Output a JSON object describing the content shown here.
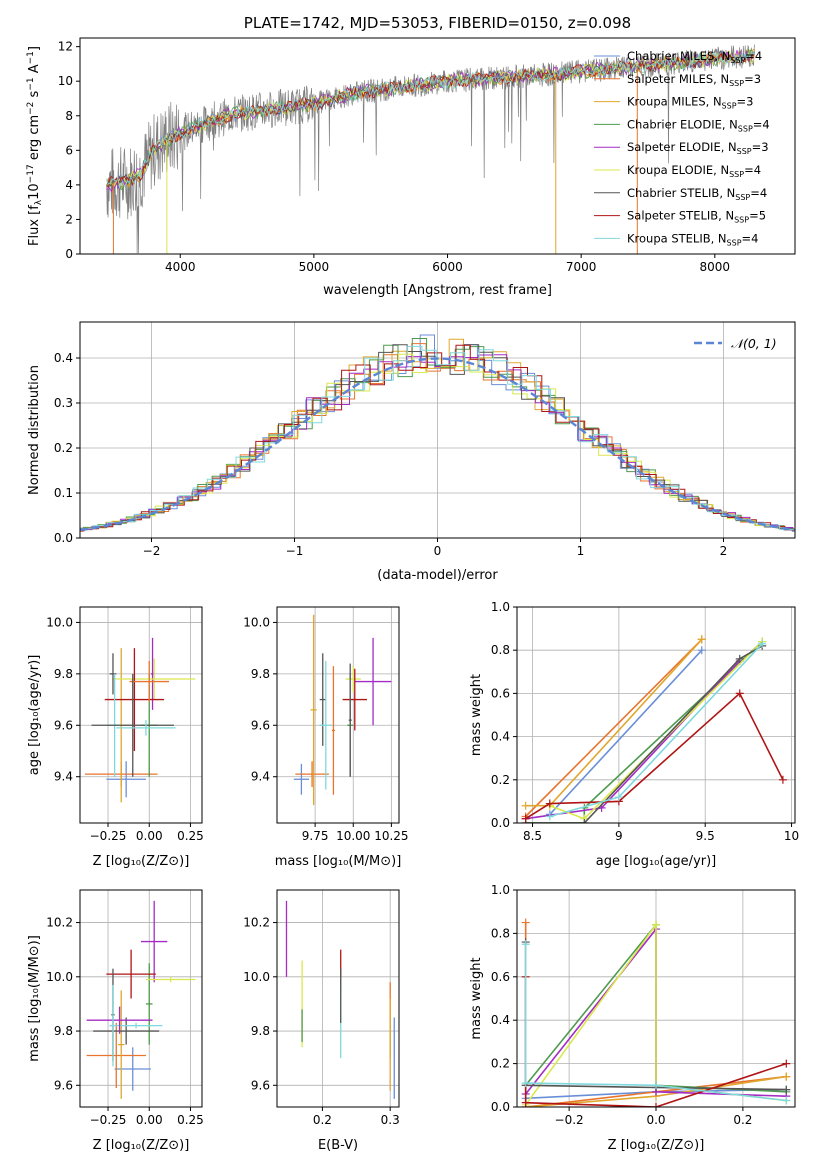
{
  "colors": {
    "chabrier_miles": "#6A8FD8",
    "salpeter_miles": "#E8742E",
    "kroupa_miles": "#E0A72E",
    "chabrier_elodie": "#4E9A4E",
    "salpeter_elodie": "#A52BC5",
    "kroupa_elodie": "#D9E84C",
    "chabrier_stelib": "#555555",
    "salpeter_stelib": "#B01515",
    "kroupa_stelib": "#7FD8DD",
    "gaussian": "#5B86D6",
    "spectrum_grey": "#7F7F7F"
  },
  "chart_data": [
    {
      "type": "line",
      "title": "PLATE=1742, MJD=53053, FIBERID=0150, z=0.098",
      "xlabel": "wavelength [Angstrom, rest frame]",
      "ylabel": "Flux [f_λ 10⁻¹⁷ erg cm⁻² s⁻¹ A⁻¹]",
      "xlim": [
        3250,
        8600
      ],
      "ylim": [
        0,
        12.5
      ],
      "xticks": [
        4000,
        5000,
        6000,
        7000,
        8000
      ],
      "yticks": [
        0,
        2,
        4,
        6,
        8,
        10,
        12
      ],
      "grid": false,
      "legend_position": "top-right",
      "legend": [
        {
          "label": "Chabrier MILES, N",
          "sub": "SSP",
          "suffix": "=4"
        },
        {
          "label": "Salpeter MILES, N",
          "sub": "SSP",
          "suffix": "=3"
        },
        {
          "label": "Kroupa MILES, N",
          "sub": "SSP",
          "suffix": "=3"
        },
        {
          "label": "Chabrier ELODIE, N",
          "sub": "SSP",
          "suffix": "=4"
        },
        {
          "label": "Salpeter ELODIE, N",
          "sub": "SSP",
          "suffix": "=3"
        },
        {
          "label": "Kroupa ELODIE, N",
          "sub": "SSP",
          "suffix": "=4"
        },
        {
          "label": "Chabrier STELIB, N",
          "sub": "SSP",
          "suffix": "=4"
        },
        {
          "label": "Salpeter STELIB, N",
          "sub": "SSP",
          "suffix": "=5"
        },
        {
          "label": "Kroupa STELIB, N",
          "sub": "SSP",
          "suffix": "=4"
        }
      ],
      "continuum": [
        [
          3450,
          4.0
        ],
        [
          3600,
          4.2
        ],
        [
          3700,
          4.6
        ],
        [
          3800,
          6.0
        ],
        [
          3900,
          6.6
        ],
        [
          4000,
          7.0
        ],
        [
          4200,
          7.6
        ],
        [
          4400,
          8.1
        ],
        [
          4700,
          8.4
        ],
        [
          5000,
          8.7
        ],
        [
          5300,
          9.3
        ],
        [
          5600,
          9.6
        ],
        [
          6000,
          10.0
        ],
        [
          6400,
          10.2
        ],
        [
          6800,
          10.4
        ],
        [
          7200,
          10.7
        ],
        [
          7600,
          11.0
        ],
        [
          8000,
          11.3
        ],
        [
          8300,
          11.5
        ]
      ]
    },
    {
      "type": "histogram",
      "xlabel": "(data-model)/error",
      "ylabel": "Normed distribution",
      "xlim": [
        -2.5,
        2.5
      ],
      "ylim": [
        0,
        0.48
      ],
      "xticks": [
        -2,
        -1,
        0,
        1,
        2
      ],
      "yticks": [
        0.0,
        0.1,
        0.2,
        0.3,
        0.4
      ],
      "grid": true,
      "legend_position": "top-right",
      "legend": [
        "𝒩(0, 1)"
      ],
      "gaussian": {
        "mean": 0,
        "sigma": 1
      }
    },
    {
      "type": "scatter",
      "xlabel": "Z [log₁₀(Z/Z⊙)]",
      "ylabel": "age  [log₁₀(age/yr)]",
      "xlim": [
        -0.42,
        0.32
      ],
      "ylim": [
        9.22,
        10.06
      ],
      "xticks": [
        -0.25,
        0.0,
        0.25
      ],
      "xtick_labels": [
        "−0.25",
        "0.00",
        "0.25"
      ],
      "yticks": [
        9.4,
        9.6,
        9.8,
        10.0
      ],
      "grid": true,
      "points": [
        {
          "series": "chabrier_miles",
          "x": -0.14,
          "xerr": 0.12,
          "y": 9.39,
          "yerr": 0.07
        },
        {
          "series": "salpeter_miles",
          "x": -0.17,
          "xerr": 0.22,
          "y": 9.41,
          "yerr": 0.05
        },
        {
          "series": "kroupa_miles",
          "x": -0.17,
          "xerr": 0.05,
          "y": 9.6,
          "yerr": 0.3
        },
        {
          "series": "chabrier_elodie",
          "x": 0.0,
          "xerr": 0.05,
          "y": 9.6,
          "yerr": 0.2
        },
        {
          "series": "salpeter_elodie",
          "x": 0.02,
          "xerr": 0.01,
          "y": 9.8,
          "yerr": 0.14
        },
        {
          "series": "kroupa_elodie",
          "x": 0.03,
          "xerr": 0.25,
          "y": 9.78,
          "yerr": 0.08
        },
        {
          "series": "chabrier_stelib",
          "x": -0.22,
          "xerr": 0.02,
          "y": 9.8,
          "yerr": 0.08
        },
        {
          "series": "salpeter_stelib",
          "x": -0.09,
          "xerr": 0.18,
          "y": 9.7,
          "yerr": 0.2
        },
        {
          "series": "kroupa_stelib",
          "x": -0.21,
          "xerr": 0.04,
          "y": 9.6,
          "yerr": 0.2
        },
        {
          "series": "salpeter_miles",
          "x": 0.0,
          "xerr": 0.12,
          "y": 9.77,
          "yerr": 0.08
        },
        {
          "series": "chabrier_stelib",
          "x": -0.1,
          "xerr": 0.25,
          "y": 9.6,
          "yerr": 0.2
        },
        {
          "series": "kroupa_stelib",
          "x": -0.02,
          "xerr": 0.18,
          "y": 9.59,
          "yerr": 0.03
        }
      ]
    },
    {
      "type": "scatter",
      "xlabel": "mass [log₁₀(M/M⊙)]",
      "ylabel": "",
      "xlim": [
        9.5,
        10.3
      ],
      "ylim": [
        9.22,
        10.06
      ],
      "xticks": [
        9.75,
        10.0,
        10.25
      ],
      "xtick_labels": [
        "9.75",
        "10.00",
        "10.25"
      ],
      "yticks": [
        9.4,
        9.6,
        9.8,
        10.0
      ],
      "grid": true,
      "points": [
        {
          "series": "chabrier_miles",
          "x": 9.66,
          "xerr": 0.05,
          "y": 9.39,
          "yerr": 0.06
        },
        {
          "series": "salpeter_miles",
          "x": 9.73,
          "xerr": 0.11,
          "y": 9.41,
          "yerr": 0.05
        },
        {
          "series": "kroupa_miles",
          "x": 9.74,
          "xerr": 0.02,
          "y": 9.66,
          "yerr": 0.37
        },
        {
          "series": "chabrier_elodie",
          "x": 9.98,
          "xerr": 0.02,
          "y": 9.6,
          "yerr": 0.2
        },
        {
          "series": "salpeter_elodie",
          "x": 10.13,
          "xerr": 0.12,
          "y": 9.77,
          "yerr": 0.17
        },
        {
          "series": "kroupa_elodie",
          "x": 10.0,
          "xerr": 0.05,
          "y": 9.78,
          "yerr": 0.05
        },
        {
          "series": "chabrier_stelib",
          "x": 9.8,
          "xerr": 0.02,
          "y": 9.7,
          "yerr": 0.18
        },
        {
          "series": "salpeter_stelib",
          "x": 10.01,
          "xerr": 0.08,
          "y": 9.7,
          "yerr": 0.12
        },
        {
          "series": "kroupa_stelib",
          "x": 9.82,
          "xerr": 0.04,
          "y": 9.6,
          "yerr": 0.25
        },
        {
          "series": "salpeter_miles",
          "x": 9.87,
          "xerr": 0.01,
          "y": 9.58,
          "yerr": 0.25
        },
        {
          "series": "chabrier_stelib",
          "x": 9.98,
          "xerr": 0.01,
          "y": 9.62,
          "yerr": 0.22
        }
      ]
    },
    {
      "type": "line",
      "xlabel": "age  [log₁₀(age/yr)]",
      "ylabel": "mass weight",
      "xlim": [
        8.41,
        10.02
      ],
      "ylim": [
        0,
        1.0
      ],
      "xticks": [
        8.5,
        9.0,
        9.5,
        10.0
      ],
      "yticks": [
        0.0,
        0.2,
        0.4,
        0.6,
        0.8,
        1.0
      ],
      "grid": true,
      "series": [
        {
          "name": "chabrier_miles",
          "points": [
            [
              8.6,
              0.04
            ],
            [
              9.48,
              0.8
            ]
          ]
        },
        {
          "name": "salpeter_miles",
          "points": [
            [
              8.46,
              0.03
            ],
            [
              9.48,
              0.85
            ]
          ]
        },
        {
          "name": "kroupa_miles",
          "points": [
            [
              8.46,
              0.08
            ],
            [
              8.6,
              0.08
            ],
            [
              9.48,
              0.85
            ]
          ]
        },
        {
          "name": "chabrier_elodie",
          "points": [
            [
              8.46,
              0.0
            ],
            [
              8.8,
              0.0
            ],
            [
              8.8,
              0.07
            ],
            [
              9.83,
              0.84
            ]
          ]
        },
        {
          "name": "salpeter_elodie",
          "points": [
            [
              8.46,
              0.02
            ],
            [
              8.9,
              0.07
            ],
            [
              9.7,
              0.75
            ]
          ]
        },
        {
          "name": "kroupa_elodie",
          "points": [
            [
              8.6,
              0.08
            ],
            [
              8.8,
              0.02
            ],
            [
              9.83,
              0.84
            ]
          ]
        },
        {
          "name": "chabrier_stelib",
          "points": [
            [
              8.46,
              0.0
            ],
            [
              8.8,
              0.0
            ],
            [
              9.7,
              0.76
            ],
            [
              9.83,
              0.82
            ]
          ]
        },
        {
          "name": "salpeter_stelib",
          "points": [
            [
              8.46,
              0.02
            ],
            [
              8.6,
              0.09
            ],
            [
              9.0,
              0.1
            ],
            [
              9.7,
              0.6
            ],
            [
              9.95,
              0.2
            ]
          ]
        },
        {
          "name": "kroupa_stelib",
          "points": [
            [
              8.6,
              0.03
            ],
            [
              9.0,
              0.12
            ],
            [
              9.83,
              0.83
            ]
          ]
        }
      ]
    },
    {
      "type": "scatter",
      "xlabel": "Z [log₁₀(Z/Z⊙)]",
      "ylabel": "mass [log₁₀(M/M⊙)]",
      "xlim": [
        -0.42,
        0.32
      ],
      "ylim": [
        9.52,
        10.32
      ],
      "xticks": [
        -0.25,
        0.0,
        0.25
      ],
      "xtick_labels": [
        "−0.25",
        "0.00",
        "0.25"
      ],
      "yticks": [
        9.6,
        9.8,
        10.0,
        10.2
      ],
      "grid": true,
      "points": [
        {
          "series": "chabrier_miles",
          "x": -0.1,
          "xerr": 0.11,
          "y": 9.66,
          "yerr": 0.08
        },
        {
          "series": "salpeter_miles",
          "x": -0.2,
          "xerr": 0.18,
          "y": 9.71,
          "yerr": 0.12
        },
        {
          "series": "kroupa_miles",
          "x": -0.17,
          "xerr": 0.02,
          "y": 9.75,
          "yerr": 0.2
        },
        {
          "series": "chabrier_elodie",
          "x": 0.0,
          "xerr": 0.02,
          "y": 9.9,
          "yerr": 0.15
        },
        {
          "series": "salpeter_elodie",
          "x": 0.03,
          "xerr": 0.08,
          "y": 10.13,
          "yerr": 0.15
        },
        {
          "series": "kroupa_elodie",
          "x": 0.13,
          "xerr": 0.15,
          "y": 9.99,
          "yerr": 0.01
        },
        {
          "series": "chabrier_stelib",
          "x": -0.14,
          "xerr": 0.2,
          "y": 9.8,
          "yerr": 0.05
        },
        {
          "series": "salpeter_stelib",
          "x": -0.11,
          "xerr": 0.15,
          "y": 10.01,
          "yerr": 0.09
        },
        {
          "series": "kroupa_stelib",
          "x": -0.08,
          "xerr": 0.16,
          "y": 9.82,
          "yerr": 0.01
        },
        {
          "series": "salpeter_elodie",
          "x": -0.18,
          "xerr": 0.2,
          "y": 9.84,
          "yerr": 0.05
        },
        {
          "series": "chabrier_stelib",
          "x": -0.22,
          "xerr": 0.01,
          "y": 9.86,
          "yerr": 0.17
        },
        {
          "series": "kroupa_stelib",
          "x": -0.22,
          "xerr": 0.02,
          "y": 9.82,
          "yerr": 0.15
        }
      ]
    },
    {
      "type": "scatter",
      "xlabel": "E(B-V)",
      "ylabel": "",
      "xlim": [
        0.133,
        0.313
      ],
      "ylim": [
        9.52,
        10.32
      ],
      "xticks": [
        0.2,
        0.3
      ],
      "xtick_labels": [
        "0.2",
        "0.3"
      ],
      "yticks": [
        9.6,
        9.8,
        10.0,
        10.2
      ],
      "grid": true,
      "points": [
        {
          "series": "salpeter_elodie",
          "x": 0.147,
          "xerr": 0,
          "y": 10.14,
          "yerr": 0.14
        },
        {
          "series": "kroupa_elodie",
          "x": 0.17,
          "xerr": 0,
          "y": 9.9,
          "yerr": 0.16
        },
        {
          "series": "chabrier_elodie",
          "x": 0.17,
          "xerr": 0,
          "y": 9.82,
          "yerr": 0.06
        },
        {
          "series": "salpeter_stelib",
          "x": 0.227,
          "xerr": 0,
          "y": 10.02,
          "yerr": 0.08
        },
        {
          "series": "kroupa_stelib",
          "x": 0.227,
          "xerr": 0,
          "y": 9.85,
          "yerr": 0.15
        },
        {
          "series": "chabrier_stelib",
          "x": 0.227,
          "xerr": 0,
          "y": 9.93,
          "yerr": 0.1
        },
        {
          "series": "salpeter_miles",
          "x": 0.3,
          "xerr": 0,
          "y": 9.84,
          "yerr": 0.14
        },
        {
          "series": "kroupa_miles",
          "x": 0.3,
          "xerr": 0,
          "y": 9.75,
          "yerr": 0.17
        },
        {
          "series": "chabrier_miles",
          "x": 0.306,
          "xerr": 0,
          "y": 9.7,
          "yerr": 0.15
        }
      ]
    },
    {
      "type": "line",
      "xlabel": "Z [log₁₀(Z/Z⊙)]",
      "ylabel": "mass weight",
      "xlim": [
        -0.32,
        0.32
      ],
      "ylim": [
        0,
        1.0
      ],
      "xticks": [
        -0.2,
        0.0,
        0.2
      ],
      "xtick_labels": [
        "−0.2",
        "0.0",
        "0.2"
      ],
      "yticks": [
        0.0,
        0.2,
        0.4,
        0.6,
        0.8,
        1.0
      ],
      "grid": true,
      "series": [
        {
          "name": "chabrier_miles",
          "points": [
            [
              -0.3,
              0.04
            ],
            [
              0.0,
              0.07
            ],
            [
              0.3,
              0.08
            ]
          ]
        },
        {
          "name": "salpeter_miles",
          "points": [
            [
              -0.3,
              0.85
            ],
            [
              -0.3,
              0.0
            ],
            [
              0.0,
              0.07
            ],
            [
              0.3,
              0.14
            ]
          ]
        },
        {
          "name": "kroupa_miles",
          "points": [
            [
              -0.3,
              0.0
            ],
            [
              0.0,
              0.05
            ],
            [
              0.3,
              0.14
            ]
          ]
        },
        {
          "name": "chabrier_elodie",
          "points": [
            [
              -0.3,
              0.1
            ],
            [
              0.0,
              0.84
            ],
            [
              0.0,
              0.1
            ],
            [
              0.3,
              0.07
            ]
          ]
        },
        {
          "name": "salpeter_elodie",
          "points": [
            [
              -0.3,
              0.06
            ],
            [
              0.0,
              0.82
            ],
            [
              0.0,
              0.07
            ],
            [
              0.3,
              0.05
            ]
          ]
        },
        {
          "name": "kroupa_elodie",
          "points": [
            [
              -0.3,
              0.01
            ],
            [
              0.0,
              0.84
            ],
            [
              0.0,
              0.1
            ],
            [
              0.3,
              0.03
            ]
          ]
        },
        {
          "name": "chabrier_stelib",
          "points": [
            [
              -0.3,
              0.76
            ],
            [
              -0.3,
              0.1
            ],
            [
              0.0,
              0.09
            ],
            [
              0.3,
              0.08
            ]
          ]
        },
        {
          "name": "salpeter_stelib",
          "points": [
            [
              -0.3,
              0.6
            ],
            [
              -0.3,
              0.02
            ],
            [
              0.0,
              0.0
            ],
            [
              0.3,
              0.2
            ]
          ]
        },
        {
          "name": "kroupa_stelib",
          "points": [
            [
              -0.3,
              0.75
            ],
            [
              -0.3,
              0.11
            ],
            [
              0.0,
              0.1
            ],
            [
              0.3,
              0.03
            ]
          ]
        }
      ]
    }
  ]
}
